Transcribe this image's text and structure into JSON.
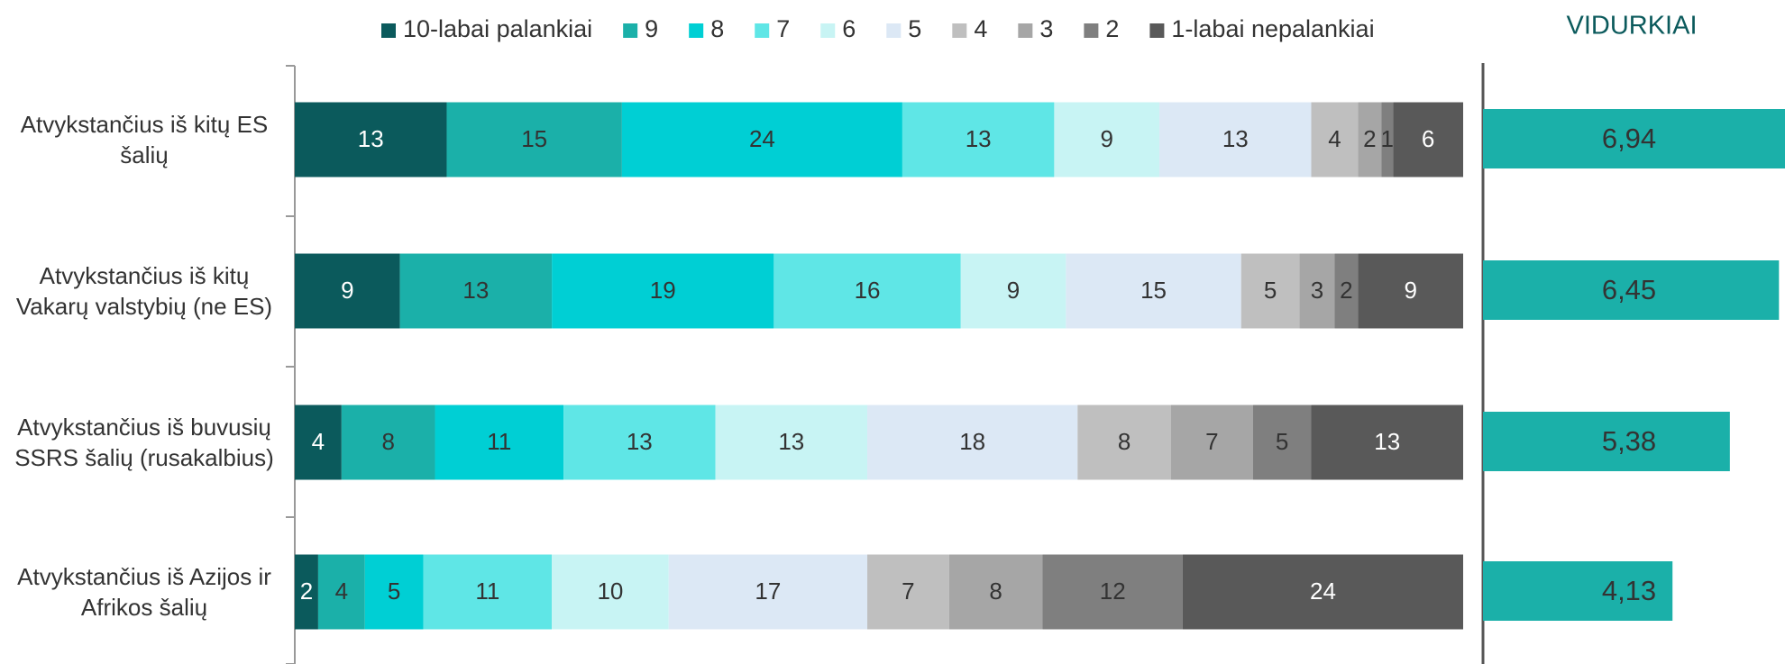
{
  "chart_data": [
    {
      "type": "stacked-bar",
      "categories": [
        "Atvykstančius iš kitų ES šalių",
        "Atvykstančius iš kitų Vakarų valstybių (ne ES)",
        "Atvykstančius iš buvusių SSRS šalių (rusakalbius)",
        "Atvykstančius iš Azijos ir Afrikos šalių"
      ],
      "xlim": [
        0,
        100
      ],
      "series": [
        {
          "name": "10-labai palankiai",
          "color": "#0b5a5c",
          "values": [
            13,
            9,
            4,
            2
          ]
        },
        {
          "name": "9",
          "color": "#1bb0a9",
          "values": [
            15,
            13,
            8,
            4
          ]
        },
        {
          "name": "8",
          "color": "#00cfd4",
          "values": [
            24,
            19,
            11,
            5
          ]
        },
        {
          "name": "7",
          "color": "#5fe6e6",
          "values": [
            13,
            16,
            13,
            11
          ]
        },
        {
          "name": "6",
          "color": "#c8f4f4",
          "values": [
            9,
            9,
            13,
            10
          ]
        },
        {
          "name": "5",
          "color": "#dce8f5",
          "values": [
            13,
            15,
            18,
            17
          ]
        },
        {
          "name": "4",
          "color": "#bfbfbf",
          "values": [
            4,
            5,
            8,
            7
          ]
        },
        {
          "name": "3",
          "color": "#a6a6a6",
          "values": [
            2,
            3,
            7,
            8
          ]
        },
        {
          "name": "2",
          "color": "#7f7f7f",
          "values": [
            1,
            2,
            5,
            12
          ]
        },
        {
          "name": "1-labai nepalankiai",
          "color": "#595959",
          "values": [
            6,
            9,
            13,
            24
          ]
        }
      ]
    },
    {
      "type": "bar",
      "title": "VIDURKIAI",
      "color": "#1bb0a9",
      "values": [
        6.94,
        6.45,
        5.38,
        4.13
      ],
      "value_labels": [
        "6,94",
        "6,45",
        "5,38",
        "4,13"
      ]
    }
  ]
}
